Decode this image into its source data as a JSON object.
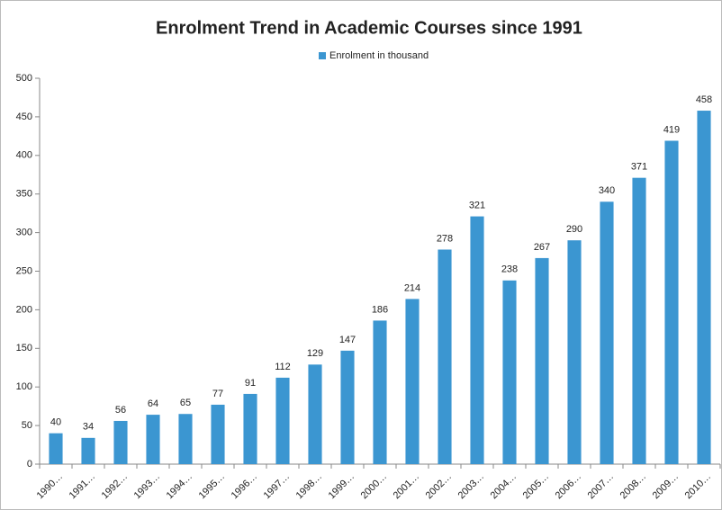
{
  "chart_data": {
    "type": "bar",
    "title": "Enrolment Trend in Academic Courses since 1991",
    "series": [
      {
        "name": "Enrolment in thousand",
        "color": "#3b96d1",
        "values": [
          40,
          34,
          56,
          64,
          65,
          77,
          91,
          112,
          129,
          147,
          186,
          214,
          278,
          321,
          238,
          267,
          290,
          340,
          371,
          419,
          458
        ]
      }
    ],
    "categories": [
      "1990…",
      "1991…",
      "1992…",
      "1993…",
      "1994…",
      "1995…",
      "1996…",
      "1997…",
      "1998…",
      "1999…",
      "2000…",
      "2001…",
      "2002…",
      "2003…",
      "2004…",
      "2005…",
      "2006…",
      "2007…",
      "2008…",
      "2009…",
      "2010…"
    ],
    "ylim": [
      0,
      500
    ],
    "yticks": [
      0,
      50,
      100,
      150,
      200,
      250,
      300,
      350,
      400,
      450,
      500
    ],
    "legend": "top",
    "grid": false
  }
}
